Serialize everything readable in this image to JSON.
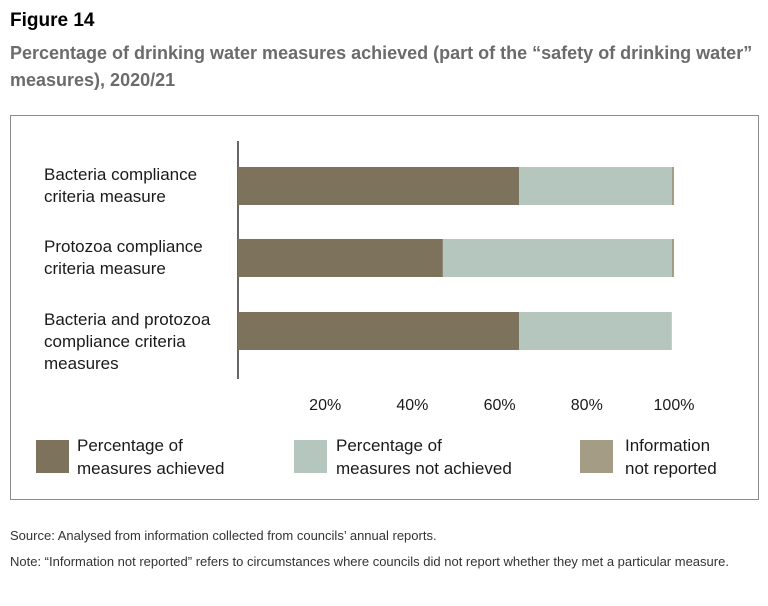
{
  "figure": {
    "label": "Figure 14",
    "title": "Percentage of drinking water measures achieved (part of the “safety of drinking water” measures), 2020/21"
  },
  "chart_data": {
    "type": "bar",
    "orientation": "horizontal",
    "stacked": true,
    "categories": [
      [
        "Bacteria compliance",
        "criteria measure"
      ],
      [
        "Protozoa compliance",
        "criteria measure"
      ],
      [
        "Bacteria and protozoa",
        "compliance criteria",
        "measures"
      ]
    ],
    "series": [
      {
        "name": "Percentage of measures achieved",
        "legend_lines": [
          "Percentage of",
          "measures achieved"
        ],
        "color": "#7d735c",
        "values": [
          64.5,
          47,
          64.5
        ]
      },
      {
        "name": "Percentage of measures not achieved",
        "legend_lines": [
          "Percentage of",
          "measures not achieved"
        ],
        "color": "#b5c6be",
        "values": [
          35,
          52.5,
          35
        ]
      },
      {
        "name": "Information not reported",
        "legend_lines": [
          "Information",
          "not reported"
        ],
        "color": "#a59c86",
        "values": [
          0.5,
          0.5,
          0
        ]
      }
    ],
    "xlim": [
      0,
      100
    ],
    "xticks": [
      "20%",
      "40%",
      "60%",
      "80%",
      "100%"
    ],
    "tick_values": [
      20,
      40,
      60,
      80,
      100
    ],
    "grid": false,
    "legend_position": "bottom"
  },
  "source": "Source: Analysed from information collected from councils’ annual reports.",
  "note": "Note: “Information not reported”  refers to circumstances where councils did not report whether they met a particular measure."
}
